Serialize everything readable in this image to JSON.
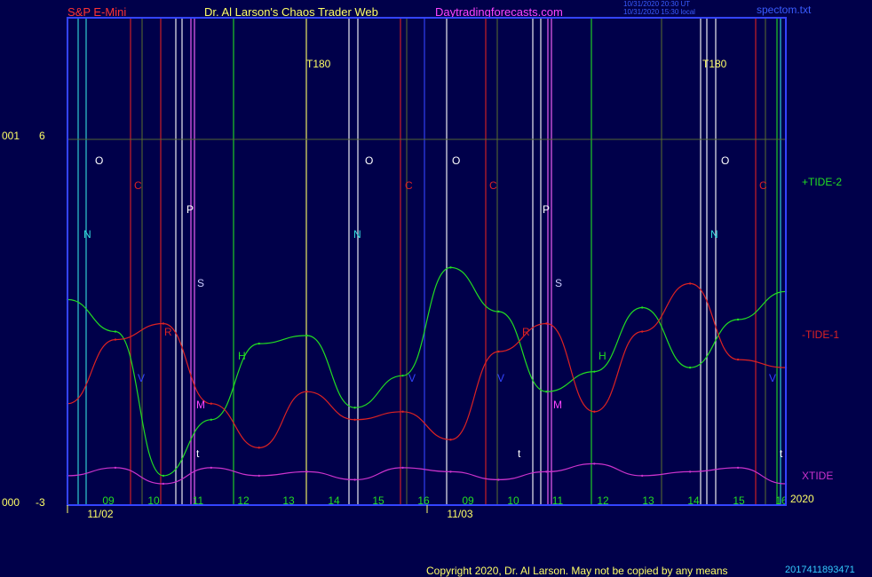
{
  "header": {
    "left_title": "S&P E-Mini",
    "center_title": "Dr. Al Larson's Chaos Trader Web",
    "site": "Daytradingforecasts.com",
    "timestamp1": "10/31/2020 20:30 UT",
    "timestamp2": "10/31/2020 15:30 local",
    "file": "spectom.txt"
  },
  "y_axis": {
    "top_prefix": "001",
    "top_value": "6",
    "bottom_prefix": "000",
    "bottom_value": "-3"
  },
  "footer": {
    "copyright": "Copyright 2020, Dr. Al Larson. May not be copied by any means",
    "stamp": "2017411893471"
  },
  "series_labels": {
    "tide2": "+TIDE-2",
    "tide1": "-TIDE-1",
    "xtide": "XTIDE",
    "year": "2020"
  },
  "colors": {
    "background": "#00004a",
    "tide2": "#22dd22",
    "tide1": "#dd2222",
    "xtide": "#cc33cc",
    "frame": "#3344ff",
    "axis_text": "#ffff66"
  },
  "chart_data": {
    "type": "line",
    "title": "S&P E-Mini",
    "ylim": [
      -3,
      6
    ],
    "x_labels": [
      "09",
      "10",
      "11",
      "12",
      "13",
      "14",
      "15",
      "16",
      "09",
      "10",
      "11",
      "12",
      "13",
      "14",
      "15",
      "16"
    ],
    "date_labels": [
      "11/02",
      "11/03"
    ],
    "series": [
      {
        "name": "+TIDE-2",
        "values": [
          2.0,
          1.2,
          -2.4,
          -1.0,
          0.9,
          1.1,
          -0.7,
          0.1,
          2.8,
          1.7,
          -0.3,
          0.2,
          1.8,
          0.3,
          1.5,
          2.2
        ]
      },
      {
        "name": "-TIDE-1",
        "values": [
          -0.6,
          1.0,
          1.4,
          -0.6,
          -1.7,
          -0.3,
          -1.0,
          -0.8,
          -1.5,
          0.7,
          1.4,
          -0.8,
          1.2,
          2.4,
          0.5,
          0.3
        ]
      },
      {
        "name": "XTIDE",
        "values": [
          -2.4,
          -2.2,
          -2.6,
          -2.2,
          -2.4,
          -2.3,
          -2.5,
          -2.2,
          -2.3,
          -2.5,
          -2.3,
          -2.1,
          -2.4,
          -2.3,
          -2.2,
          -2.6
        ]
      }
    ],
    "event_markers": [
      "O",
      "C",
      "N",
      "P",
      "S",
      "R",
      "V",
      "M",
      "H",
      "t",
      "T180"
    ]
  }
}
